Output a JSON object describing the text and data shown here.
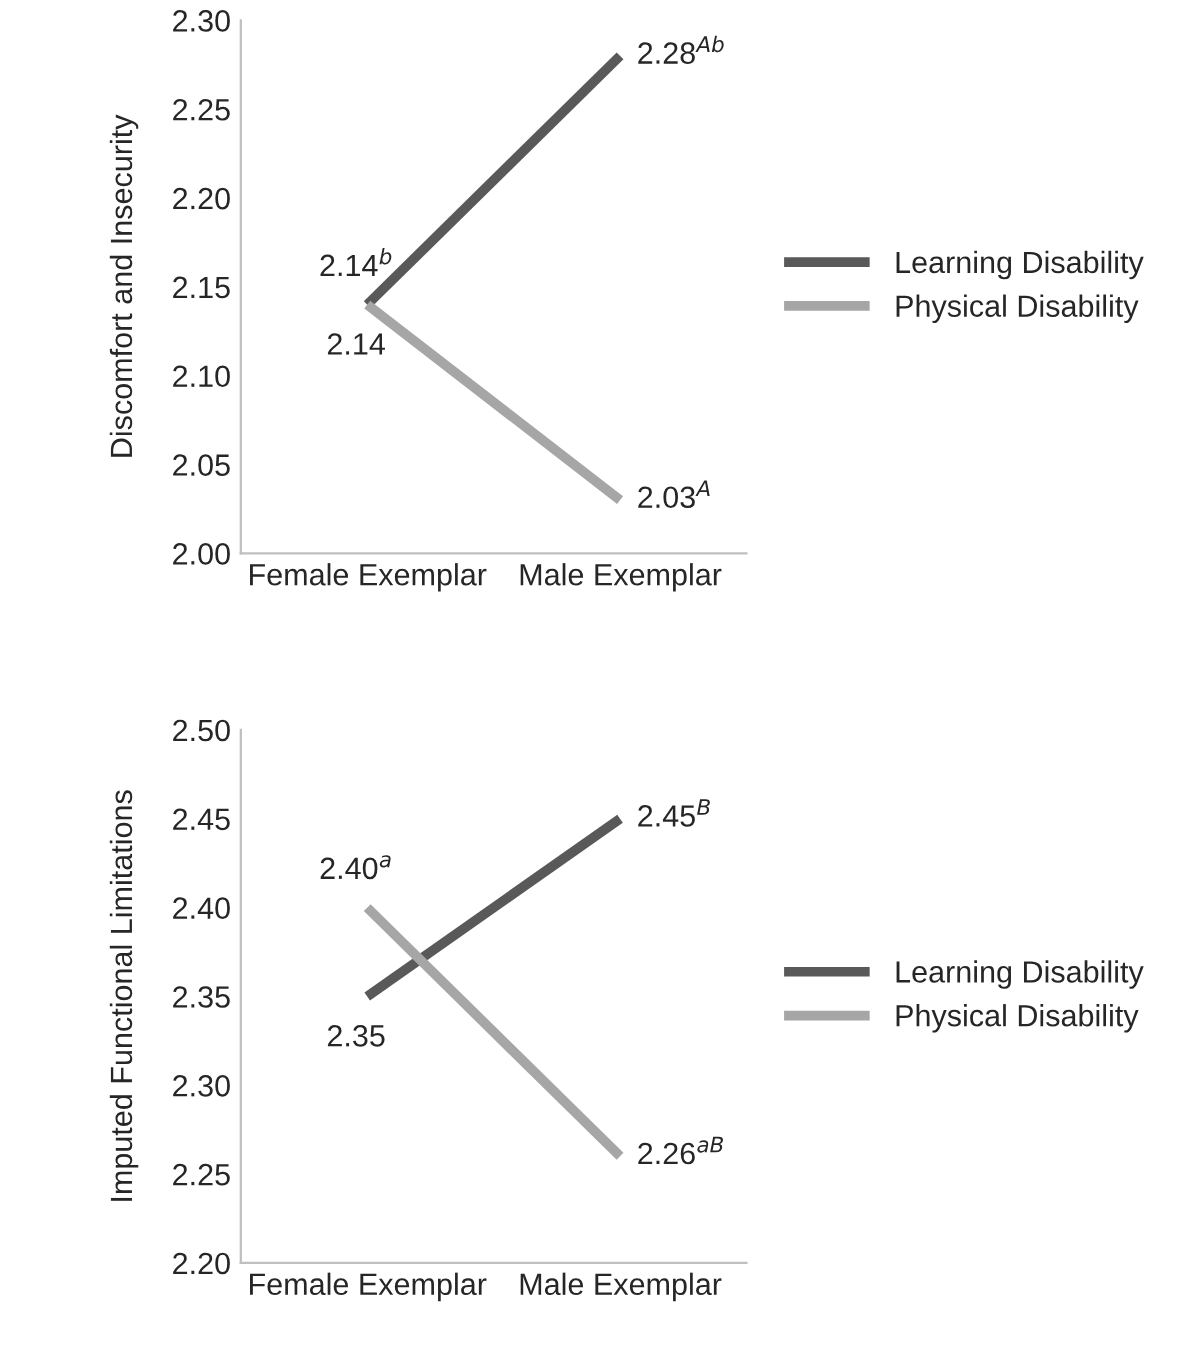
{
  "chart_data": [
    {
      "type": "line",
      "ylabel": "Discomfort and Insecurity",
      "categories": [
        "Female Exemplar",
        "Male Exemplar"
      ],
      "series": [
        {
          "name": "Learning Disability",
          "color": "#595959",
          "values": [
            2.14,
            2.28
          ],
          "value_labels": [
            "2.14$^{b}$",
            "2.28$^{Ab}$"
          ]
        },
        {
          "name": "Physical Disability",
          "color": "#a6a6a6",
          "values": [
            2.14,
            2.03
          ],
          "value_labels": [
            "2.14",
            "2.03$^{A}$"
          ]
        }
      ],
      "ylim": [
        2.0,
        2.3
      ],
      "yticks": [
        {
          "value": 2.0,
          "label": "2.00"
        },
        {
          "value": 2.05,
          "label": "2.05"
        },
        {
          "value": 2.1,
          "label": "2.10"
        },
        {
          "value": 2.15,
          "label": "2.15"
        },
        {
          "value": 2.2,
          "label": "2.20"
        },
        {
          "value": 2.25,
          "label": "2.25"
        },
        {
          "value": 2.3,
          "label": "2.30"
        }
      ],
      "grid": false,
      "legend": "right",
      "marker": "none",
      "line_style": "solid"
    },
    {
      "type": "line",
      "ylabel": "Imputed Functional Limitations",
      "categories": [
        "Female Exemplar",
        "Male Exemplar"
      ],
      "series": [
        {
          "name": "Learning Disability",
          "color": "#595959",
          "values": [
            2.35,
            2.45
          ],
          "value_labels": [
            "2.35",
            "2.45$^{B}$"
          ]
        },
        {
          "name": "Physical Disability",
          "color": "#a6a6a6",
          "values": [
            2.4,
            2.26
          ],
          "value_labels": [
            "2.40$^{a}$",
            "2.26$^{aB}$"
          ]
        }
      ],
      "ylim": [
        2.2,
        2.5
      ],
      "yticks": [
        {
          "value": 2.2,
          "label": "2.20"
        },
        {
          "value": 2.25,
          "label": "2.25"
        },
        {
          "value": 2.3,
          "label": "2.30"
        },
        {
          "value": 2.35,
          "label": "2.35"
        },
        {
          "value": 2.4,
          "label": "2.40"
        },
        {
          "value": 2.45,
          "label": "2.45"
        },
        {
          "value": 2.5,
          "label": "2.50"
        }
      ],
      "grid": false,
      "legend": "right",
      "marker": "none",
      "line_style": "solid"
    }
  ]
}
